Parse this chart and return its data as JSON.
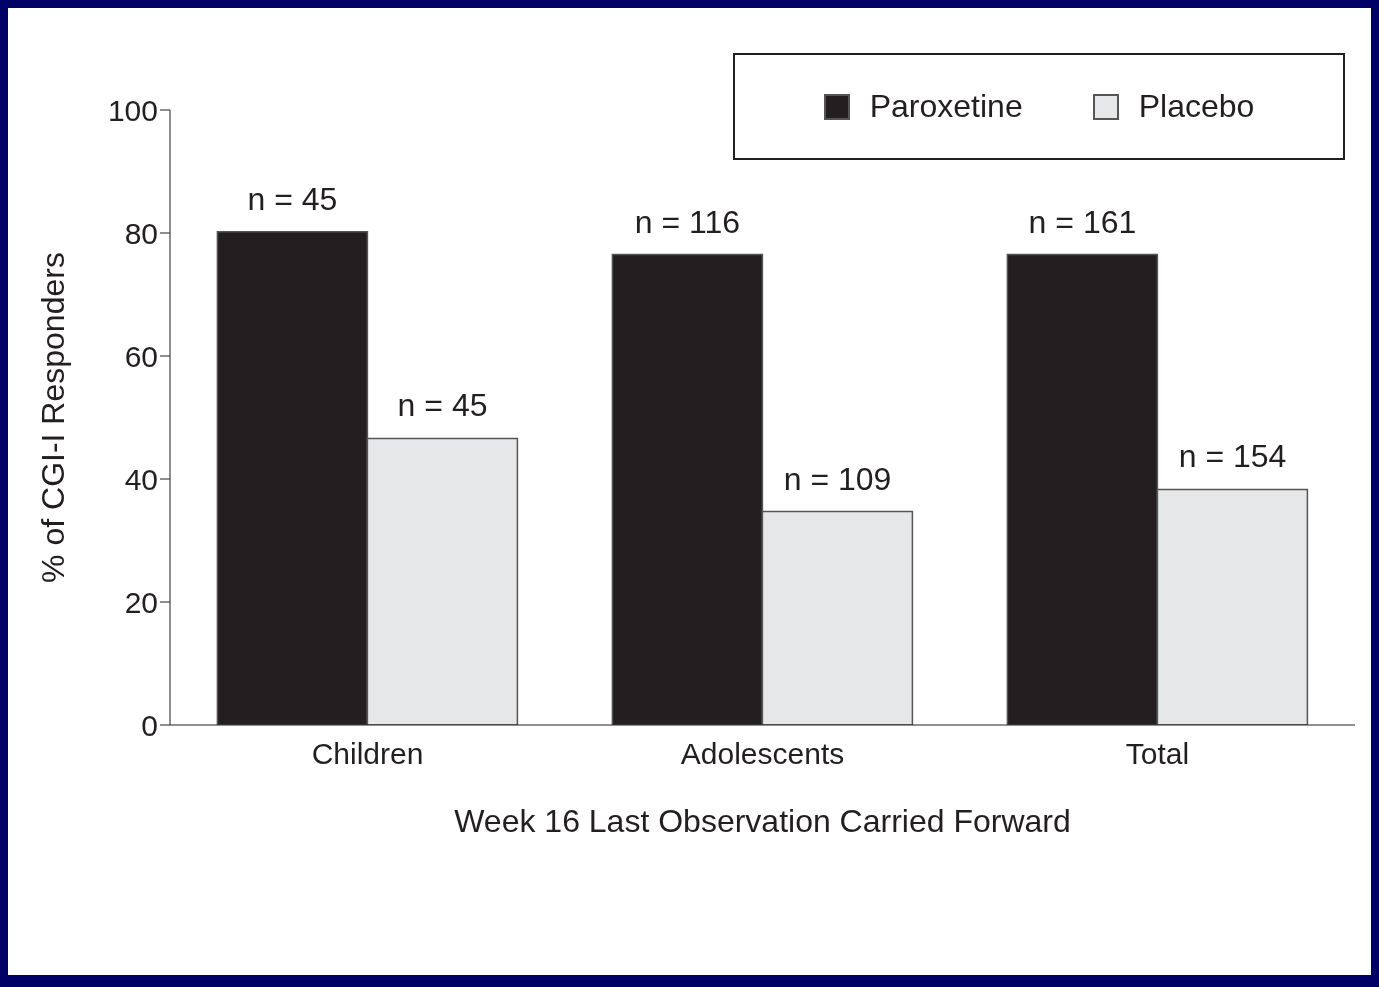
{
  "chart_data": {
    "type": "bar",
    "xlabel": "Week 16 Last Observation Carried Forward",
    "ylabel": "% of CGI-I Responders",
    "categories": [
      "Children",
      "Adolescents",
      "Total"
    ],
    "series": [
      {
        "name": "Paroxetine",
        "color": "#231f20",
        "values": [
          80.2,
          76.5,
          76.5
        ]
      },
      {
        "name": "Placebo",
        "color": "#e6e7e8",
        "values": [
          46.6,
          34.7,
          38.3
        ]
      }
    ],
    "annotations": [
      {
        "text": "n = 45",
        "x": "Children",
        "y": 80.2
      },
      {
        "text": "n = 45",
        "x": "Children",
        "y": 46.6
      },
      {
        "text": "n = 116",
        "x": "Adolescents",
        "y": 76.5
      },
      {
        "text": "n = 109",
        "x": "Adolescents",
        "y": 34.7
      },
      {
        "text": "n = 161",
        "x": "Total",
        "y": 76.5
      },
      {
        "text": "n = 154",
        "x": "Total",
        "y": 38.3
      }
    ],
    "ylim": [
      0,
      100
    ],
    "yticks": [
      0,
      20,
      40,
      60,
      80,
      100
    ],
    "grid": false,
    "legend": "top right"
  }
}
